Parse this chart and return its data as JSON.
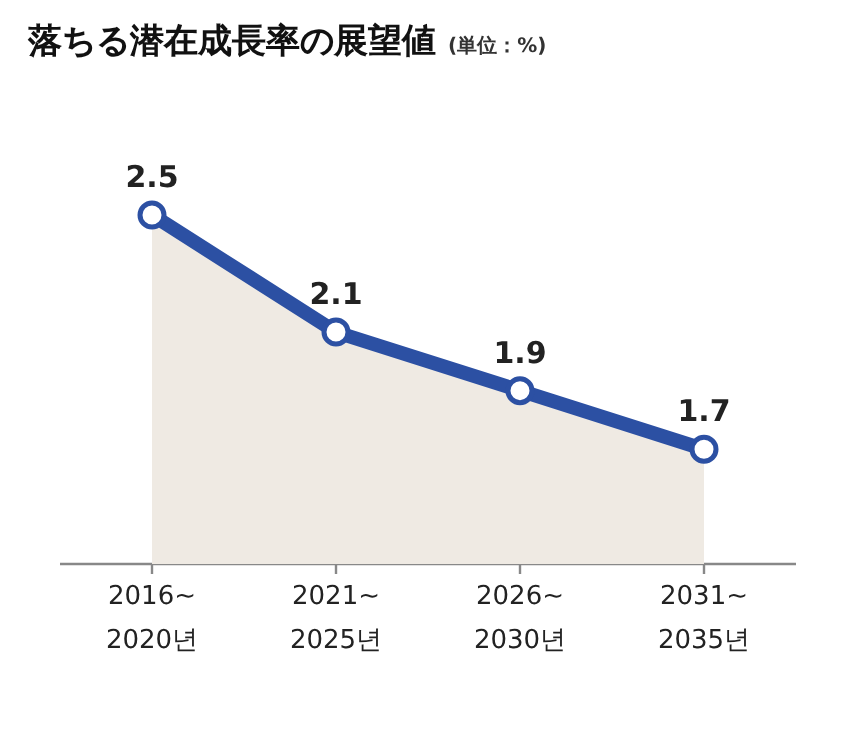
{
  "chart_data": {
    "type": "area",
    "title": "落ちる潜在成長率の展望値",
    "subtitle": "(単位：%)",
    "categories": [
      "2016~\n2020년",
      "2021~\n2025년",
      "2026~\n2030년",
      "2031~\n2035년"
    ],
    "series": [
      {
        "color": "#2c50a3",
        "values": [
          2.5,
          2.1,
          1.9,
          1.7
        ]
      }
    ],
    "tick_labels": "x",
    "data_labels": true,
    "marker": "circle",
    "line_style": "solid"
  }
}
